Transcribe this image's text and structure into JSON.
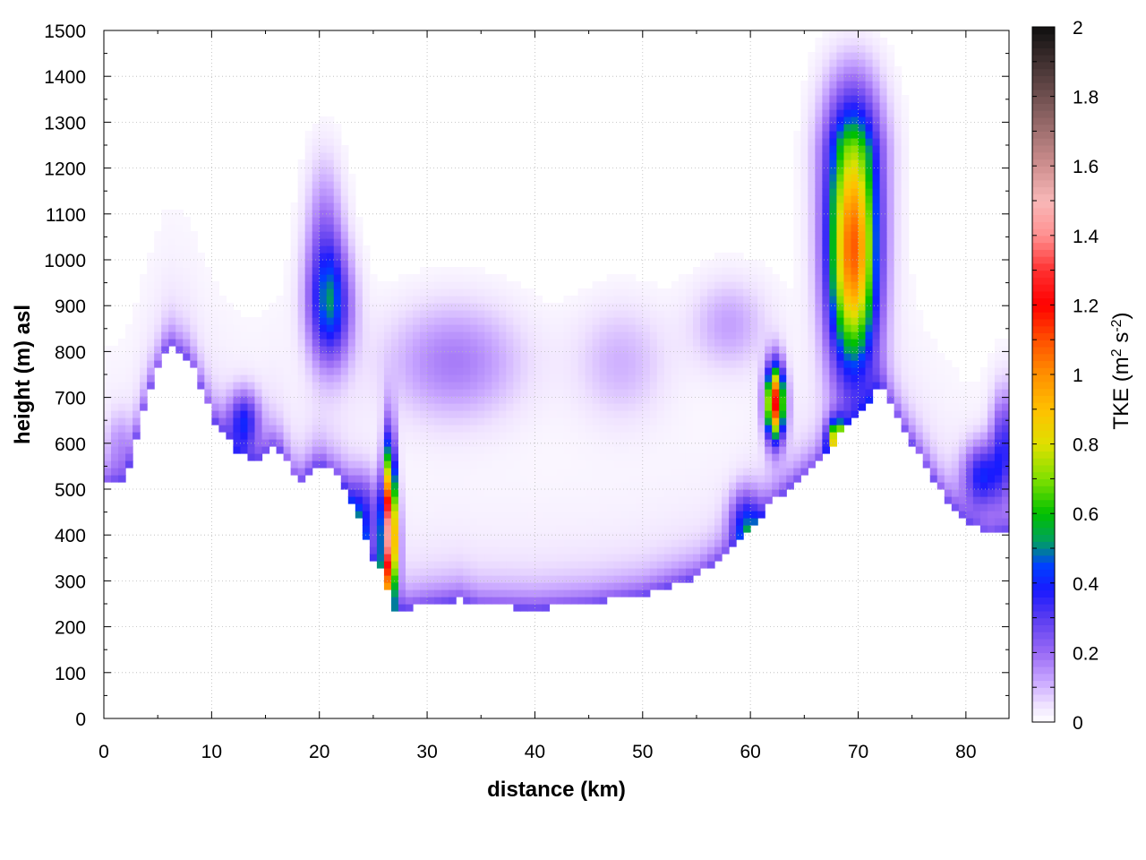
{
  "chart_data": {
    "type": "heatmap",
    "title": "",
    "xlabel": "distance (km)",
    "ylabel": "height (m) asl",
    "colorbar": {
      "label_main": "TKE (m",
      "label_sup1": "2",
      "label_mid": " s",
      "label_sup2": "-2",
      "label_end": ")",
      "range": [
        0,
        2
      ],
      "ticks": [
        "0",
        "0.2",
        "0.4",
        "0.6",
        "0.8",
        "1",
        "1.2",
        "1.4",
        "1.6",
        "1.8",
        "2"
      ],
      "stops": [
        [
          0.0,
          "#ffffff"
        ],
        [
          0.05,
          "#efe2ff"
        ],
        [
          0.12,
          "#c8a6ff"
        ],
        [
          0.2,
          "#9a6bf5"
        ],
        [
          0.3,
          "#5a3cf0"
        ],
        [
          0.38,
          "#1a1aff"
        ],
        [
          0.45,
          "#0040ff"
        ],
        [
          0.52,
          "#00a060"
        ],
        [
          0.6,
          "#00c000"
        ],
        [
          0.7,
          "#80e000"
        ],
        [
          0.8,
          "#e0e000"
        ],
        [
          0.9,
          "#ffc000"
        ],
        [
          1.0,
          "#ff9000"
        ],
        [
          1.1,
          "#ff5000"
        ],
        [
          1.2,
          "#ff0000"
        ],
        [
          1.3,
          "#ff3030"
        ],
        [
          1.4,
          "#ff9090"
        ],
        [
          1.5,
          "#f8b8b8"
        ],
        [
          1.6,
          "#d09090"
        ],
        [
          1.7,
          "#a07070"
        ],
        [
          1.8,
          "#705050"
        ],
        [
          1.9,
          "#403030"
        ],
        [
          2.0,
          "#101010"
        ]
      ]
    },
    "xlim": [
      0,
      84
    ],
    "ylim": [
      0,
      1500
    ],
    "x_ticks": [
      "0",
      "10",
      "20",
      "30",
      "40",
      "50",
      "60",
      "70",
      "80"
    ],
    "y_ticks": [
      "0",
      "100",
      "200",
      "300",
      "400",
      "500",
      "600",
      "700",
      "800",
      "900",
      "1000",
      "1100",
      "1200",
      "1300",
      "1400",
      "1500"
    ],
    "grid": true,
    "terrain": [
      [
        0,
        510
      ],
      [
        2,
        520
      ],
      [
        4,
        700
      ],
      [
        6,
        820
      ],
      [
        8,
        780
      ],
      [
        10,
        660
      ],
      [
        12,
        590
      ],
      [
        14,
        560
      ],
      [
        16,
        600
      ],
      [
        18,
        510
      ],
      [
        20,
        560
      ],
      [
        22,
        520
      ],
      [
        24,
        420
      ],
      [
        25,
        350
      ],
      [
        26,
        310
      ],
      [
        27,
        240
      ],
      [
        28,
        240
      ],
      [
        30,
        250
      ],
      [
        33,
        260
      ],
      [
        35,
        245
      ],
      [
        40,
        240
      ],
      [
        45,
        250
      ],
      [
        50,
        270
      ],
      [
        55,
        310
      ],
      [
        58,
        360
      ],
      [
        60,
        420
      ],
      [
        62,
        470
      ],
      [
        64,
        510
      ],
      [
        66,
        550
      ],
      [
        68,
        610
      ],
      [
        70,
        660
      ],
      [
        72,
        730
      ],
      [
        74,
        640
      ],
      [
        76,
        560
      ],
      [
        78,
        480
      ],
      [
        80,
        430
      ],
      [
        82,
        400
      ],
      [
        84,
        410
      ]
    ],
    "features": [
      {
        "x": 26.5,
        "y": 380,
        "sx": 0.5,
        "sy": 90,
        "peak": 1.25
      },
      {
        "x": 26.5,
        "y": 520,
        "sx": 0.4,
        "sy": 90,
        "peak": 0.55
      },
      {
        "x": 62.3,
        "y": 690,
        "sx": 0.6,
        "sy": 55,
        "peak": 1.2
      },
      {
        "x": 69.5,
        "y": 1000,
        "sx": 1.6,
        "sy": 170,
        "peak": 1.0
      },
      {
        "x": 69.5,
        "y": 1300,
        "sx": 2.0,
        "sy": 160,
        "peak": 0.38
      },
      {
        "x": 68.0,
        "y": 610,
        "sx": 0.6,
        "sy": 30,
        "peak": 0.65
      },
      {
        "x": 21.0,
        "y": 900,
        "sx": 1.4,
        "sy": 90,
        "peak": 0.42
      },
      {
        "x": 20.5,
        "y": 1050,
        "sx": 1.2,
        "sy": 120,
        "peak": 0.18
      },
      {
        "x": 13.0,
        "y": 650,
        "sx": 1.0,
        "sy": 45,
        "peak": 0.33
      },
      {
        "x": 81.5,
        "y": 530,
        "sx": 1.2,
        "sy": 50,
        "peak": 0.35
      },
      {
        "x": 32.5,
        "y": 780,
        "sx": 4.5,
        "sy": 90,
        "peak": 0.17
      },
      {
        "x": 48.0,
        "y": 780,
        "sx": 3.0,
        "sy": 90,
        "peak": 0.1
      },
      {
        "x": 58.0,
        "y": 860,
        "sx": 2.5,
        "sy": 70,
        "peak": 0.12
      },
      {
        "x": 59.5,
        "y": 430,
        "sx": 1.0,
        "sy": 50,
        "peak": 0.3
      },
      {
        "x": 24.0,
        "y": 450,
        "sx": 1.2,
        "sy": 60,
        "peak": 0.28
      },
      {
        "x": 83.5,
        "y": 600,
        "sx": 0.8,
        "sy": 80,
        "peak": 0.3
      },
      {
        "x": 1.5,
        "y": 600,
        "sx": 0.8,
        "sy": 50,
        "peak": 0.1
      }
    ]
  }
}
